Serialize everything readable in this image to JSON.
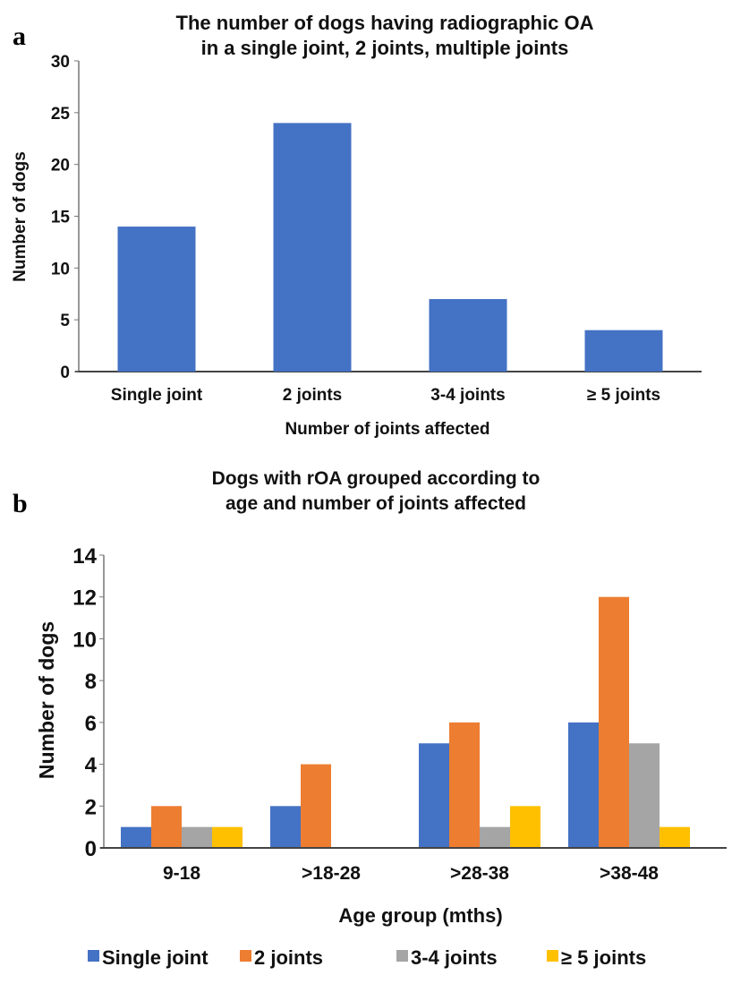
{
  "chart_data": [
    {
      "type": "bar",
      "panel_label": "a",
      "title": [
        "The number of dogs having radiographic OA",
        "in a single joint, 2 joints, multiple joints"
      ],
      "xlabel": "Number of joints affected",
      "ylabel": "Number of dogs",
      "categories": [
        "Single joint",
        "2 joints",
        "3-4 joints",
        "≥ 5 joints"
      ],
      "values": [
        14,
        24,
        7,
        4
      ],
      "ylim": [
        0,
        30
      ],
      "yticks": [
        0,
        5,
        10,
        15,
        20,
        25,
        30
      ],
      "color": "#4472c4",
      "grid": false
    },
    {
      "type": "bar",
      "panel_label": "b",
      "title": [
        "Dogs with rOA grouped according to",
        "age and number of joints affected"
      ],
      "xlabel": "Age group (mths)",
      "ylabel": "Number of dogs",
      "categories": [
        "9-18",
        ">18-28",
        ">28-38",
        ">38-48"
      ],
      "series": [
        {
          "name": "Single joint",
          "values": [
            1,
            2,
            5,
            6
          ],
          "color": "#4472c4"
        },
        {
          "name": "2 joints",
          "values": [
            2,
            4,
            6,
            12
          ],
          "color": "#ed7d31"
        },
        {
          "name": "3-4 joints",
          "values": [
            1,
            0,
            1,
            5
          ],
          "color": "#a5a5a5"
        },
        {
          "name": "≥ 5 joints",
          "values": [
            1,
            0,
            2,
            1
          ],
          "color": "#ffc000"
        }
      ],
      "ylim": [
        0,
        14
      ],
      "yticks": [
        0,
        2,
        4,
        6,
        8,
        10,
        12,
        14
      ],
      "legend": "bottom",
      "grid": false
    }
  ]
}
